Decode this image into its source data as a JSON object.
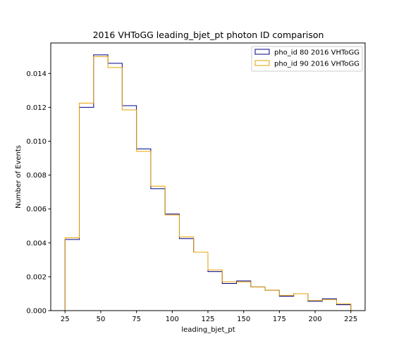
{
  "chart_data": {
    "type": "histogram-step",
    "title": "2016 VHToGG leading_bjet_pt photon ID comparison",
    "xlabel": "leading_bjet_pt",
    "ylabel": "Number of Events",
    "xlim": [
      15,
      235
    ],
    "ylim": [
      0,
      0.0158
    ],
    "x_ticks": [
      25,
      50,
      75,
      100,
      125,
      150,
      175,
      200,
      225
    ],
    "y_ticks": [
      0.0,
      0.002,
      0.004,
      0.006,
      0.008,
      0.01,
      0.012,
      0.014
    ],
    "y_tick_labels": [
      "0.000",
      "0.002",
      "0.004",
      "0.006",
      "0.008",
      "0.010",
      "0.012",
      "0.014"
    ],
    "bin_edges": [
      25,
      35,
      45,
      55,
      65,
      75,
      85,
      95,
      105,
      115,
      125,
      135,
      145,
      155,
      165,
      175,
      185,
      195,
      205,
      215,
      225
    ],
    "legend_position": "top-right",
    "series": [
      {
        "name": "pho_id 80 2016 VHToGG",
        "color": "#00008b",
        "values": [
          0.0042,
          0.012,
          0.0151,
          0.0146,
          0.0121,
          0.00955,
          0.0072,
          0.0057,
          0.00425,
          0.00345,
          0.0023,
          0.0016,
          0.00175,
          0.0014,
          0.0012,
          0.00085,
          0.001,
          0.00055,
          0.0007,
          0.00035
        ]
      },
      {
        "name": "pho_id 90 2016 VHToGG",
        "color": "#e6a100",
        "values": [
          0.0043,
          0.01225,
          0.015,
          0.01435,
          0.01185,
          0.0094,
          0.00735,
          0.00565,
          0.00435,
          0.00345,
          0.0024,
          0.0017,
          0.0017,
          0.0014,
          0.0012,
          0.0009,
          0.001,
          0.0006,
          0.00065,
          0.0004
        ]
      }
    ]
  }
}
